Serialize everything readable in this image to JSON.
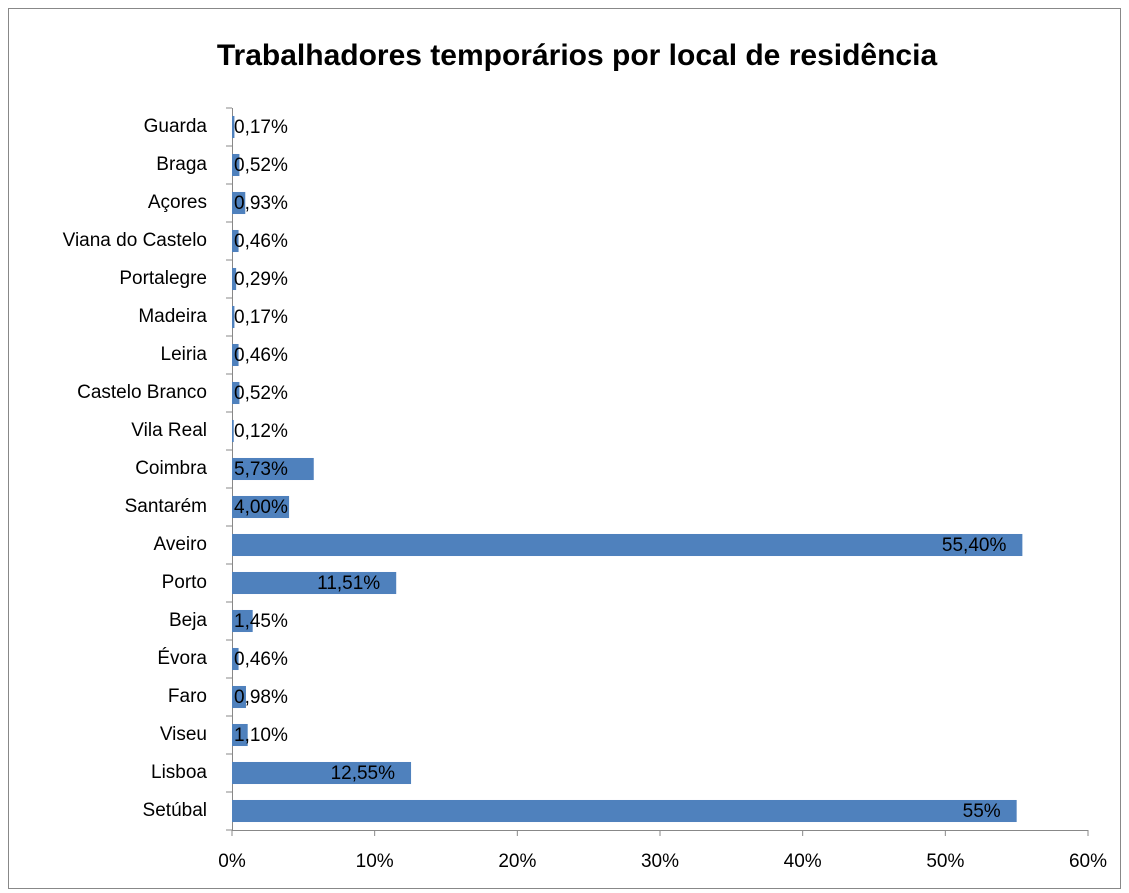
{
  "chart_data": {
    "type": "bar",
    "orientation": "horizontal",
    "title": "Trabalhadores temporários por local de residência",
    "categories": [
      "Guarda",
      "Braga",
      "Açores",
      "Viana do Castelo",
      "Portalegre",
      "Madeira",
      "Leiria",
      "Castelo Branco",
      "Vila Real",
      "Coimbra",
      "Santarém",
      "Aveiro",
      "Porto",
      "Beja",
      "Évora",
      "Faro",
      "Viseu",
      "Lisboa",
      "Setúbal"
    ],
    "values": [
      0.17,
      0.52,
      0.93,
      0.46,
      0.29,
      0.17,
      0.46,
      0.52,
      0.12,
      5.73,
      4.0,
      55.4,
      11.51,
      1.45,
      0.46,
      0.98,
      1.1,
      12.55,
      55
    ],
    "value_labels": [
      "0,17%",
      "0,52%",
      "0,93%",
      "0,46%",
      "0,29%",
      "0,17%",
      "0,46%",
      "0,52%",
      "0,12%",
      "5,73%",
      "4,00%",
      "55,40%",
      "11,51%",
      "1,45%",
      "0,46%",
      "0,98%",
      "1,10%",
      "12,55%",
      "55%"
    ],
    "color": "#4f81bd",
    "xlim": [
      0,
      60
    ],
    "xticks": [
      {
        "value": 0,
        "label": "0%"
      },
      {
        "value": 10,
        "label": "10%"
      },
      {
        "value": 20,
        "label": "20%"
      },
      {
        "value": 30,
        "label": "30%"
      },
      {
        "value": 40,
        "label": "40%"
      },
      {
        "value": 50,
        "label": "50%"
      },
      {
        "value": 60,
        "label": "60%"
      }
    ],
    "grid": false
  }
}
